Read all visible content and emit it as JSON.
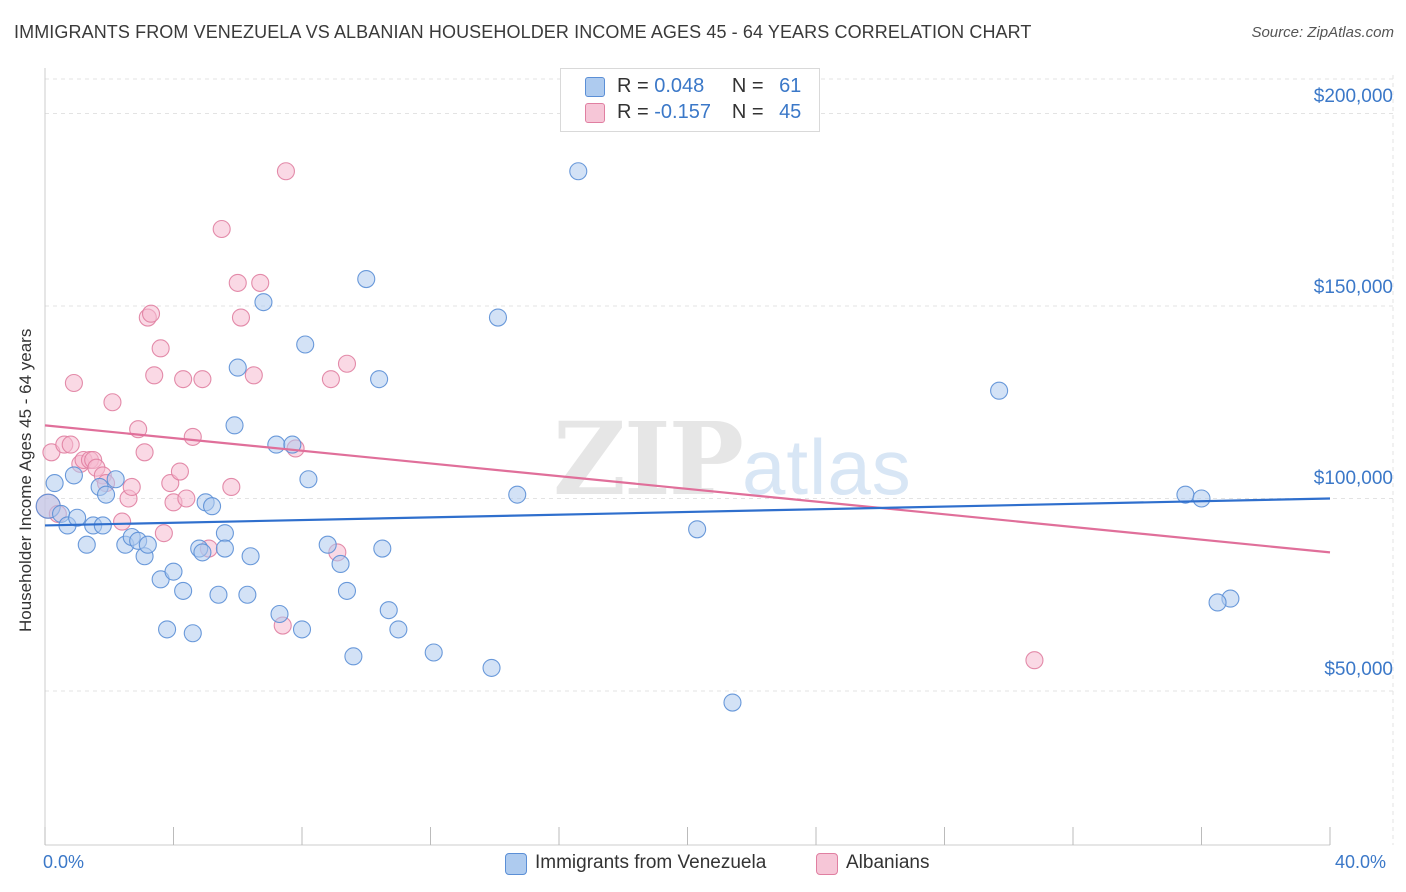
{
  "header": {
    "title": "IMMIGRANTS FROM VENEZUELA VS ALBANIAN HOUSEHOLDER INCOME AGES 45 - 64 YEARS CORRELATION CHART",
    "source": "Source: ZipAtlas.com"
  },
  "watermark": {
    "zip": "ZIP",
    "atlas": "atlas"
  },
  "legend_top": {
    "rows": [
      {
        "r_label": "R =",
        "r_value": "0.048",
        "n_label": "N =",
        "n_value": "61"
      },
      {
        "r_label": "R =",
        "r_value": "-0.157",
        "n_label": "N =",
        "n_value": "45"
      }
    ]
  },
  "colors": {
    "blue_fill": "#aecbef",
    "blue_stroke": "#5b8fd6",
    "blue_line": "#2f6fcd",
    "pink_fill": "#f6b9cf",
    "pink_stroke": "#e07fa1",
    "pink_line": "#e06f9a",
    "grid": "#e3e3e3",
    "axis_text": "#3b78c8"
  },
  "chart_data": {
    "type": "scatter",
    "title": "IMMIGRANTS FROM VENEZUELA VS ALBANIAN HOUSEHOLDER INCOME AGES 45 - 64 YEARS CORRELATION CHART",
    "xlabel": "",
    "ylabel": "Householder Income Ages 45 - 64 years",
    "xlim": [
      0,
      40
    ],
    "ylim": [
      10000,
      210000
    ],
    "x_tick_labels": [
      "0.0%",
      "40.0%"
    ],
    "y_ticks": [
      50000,
      100000,
      150000,
      200000
    ],
    "y_tick_labels": [
      "$50,000",
      "$100,000",
      "$150,000",
      "$200,000"
    ],
    "grid": true,
    "legend_position": "bottom",
    "series": [
      {
        "name": "Immigrants from Venezuela",
        "r": 0.048,
        "n": 61,
        "trend": {
          "x": [
            0,
            40
          ],
          "y": [
            93000,
            100000
          ]
        },
        "points": [
          [
            0.1,
            98000
          ],
          [
            0.3,
            104000
          ],
          [
            0.5,
            96000
          ],
          [
            0.7,
            93000
          ],
          [
            0.9,
            106000
          ],
          [
            1.0,
            95000
          ],
          [
            1.3,
            88000
          ],
          [
            1.5,
            93000
          ],
          [
            1.7,
            103000
          ],
          [
            1.8,
            93000
          ],
          [
            1.9,
            101000
          ],
          [
            2.2,
            105000
          ],
          [
            2.5,
            88000
          ],
          [
            2.7,
            90000
          ],
          [
            2.9,
            89000
          ],
          [
            3.1,
            85000
          ],
          [
            3.2,
            88000
          ],
          [
            3.6,
            79000
          ],
          [
            3.8,
            66000
          ],
          [
            4.0,
            81000
          ],
          [
            4.3,
            76000
          ],
          [
            4.6,
            65000
          ],
          [
            4.8,
            87000
          ],
          [
            4.9,
            86000
          ],
          [
            5.0,
            99000
          ],
          [
            5.2,
            98000
          ],
          [
            5.4,
            75000
          ],
          [
            5.6,
            91000
          ],
          [
            5.9,
            119000
          ],
          [
            6.0,
            134000
          ],
          [
            6.3,
            75000
          ],
          [
            6.4,
            85000
          ],
          [
            6.8,
            151000
          ],
          [
            7.2,
            114000
          ],
          [
            7.3,
            70000
          ],
          [
            7.7,
            114000
          ],
          [
            8.0,
            66000
          ],
          [
            8.1,
            140000
          ],
          [
            8.2,
            105000
          ],
          [
            8.8,
            88000
          ],
          [
            9.2,
            83000
          ],
          [
            9.4,
            76000
          ],
          [
            9.6,
            59000
          ],
          [
            10.0,
            157000
          ],
          [
            10.4,
            131000
          ],
          [
            10.5,
            87000
          ],
          [
            10.7,
            71000
          ],
          [
            11.0,
            66000
          ],
          [
            12.1,
            60000
          ],
          [
            14.1,
            147000
          ],
          [
            13.9,
            56000
          ],
          [
            14.7,
            101000
          ],
          [
            16.6,
            185000
          ],
          [
            20.3,
            92000
          ],
          [
            21.4,
            47000
          ],
          [
            29.7,
            128000
          ],
          [
            35.5,
            101000
          ],
          [
            36.0,
            100000
          ],
          [
            36.9,
            74000
          ],
          [
            36.5,
            73000
          ],
          [
            5.6,
            87000
          ]
        ]
      },
      {
        "name": "Albanians",
        "r": -0.157,
        "n": 45,
        "trend": {
          "x": [
            0,
            40
          ],
          "y": [
            119000,
            86000
          ]
        },
        "points": [
          [
            0.1,
            98000
          ],
          [
            0.2,
            112000
          ],
          [
            0.4,
            96000
          ],
          [
            0.6,
            114000
          ],
          [
            0.8,
            114000
          ],
          [
            0.9,
            130000
          ],
          [
            1.1,
            109000
          ],
          [
            1.2,
            110000
          ],
          [
            1.4,
            110000
          ],
          [
            1.5,
            110000
          ],
          [
            1.6,
            108000
          ],
          [
            1.8,
            106000
          ],
          [
            1.9,
            104000
          ],
          [
            2.1,
            125000
          ],
          [
            2.4,
            94000
          ],
          [
            2.6,
            100000
          ],
          [
            2.7,
            103000
          ],
          [
            2.9,
            118000
          ],
          [
            3.1,
            112000
          ],
          [
            3.2,
            147000
          ],
          [
            3.4,
            132000
          ],
          [
            3.6,
            139000
          ],
          [
            3.7,
            91000
          ],
          [
            3.9,
            104000
          ],
          [
            4.0,
            99000
          ],
          [
            4.2,
            107000
          ],
          [
            4.3,
            131000
          ],
          [
            4.4,
            100000
          ],
          [
            4.6,
            116000
          ],
          [
            4.9,
            131000
          ],
          [
            5.1,
            87000
          ],
          [
            5.5,
            170000
          ],
          [
            5.8,
            103000
          ],
          [
            6.0,
            156000
          ],
          [
            6.1,
            147000
          ],
          [
            6.5,
            132000
          ],
          [
            6.7,
            156000
          ],
          [
            7.4,
            67000
          ],
          [
            7.5,
            185000
          ],
          [
            7.8,
            113000
          ],
          [
            8.9,
            131000
          ],
          [
            9.1,
            86000
          ],
          [
            9.4,
            135000
          ],
          [
            3.3,
            148000
          ],
          [
            30.8,
            58000
          ]
        ]
      }
    ]
  },
  "legend_bottom": {
    "items": [
      {
        "label": "Immigrants from Venezuela"
      },
      {
        "label": "Albanians"
      }
    ]
  }
}
